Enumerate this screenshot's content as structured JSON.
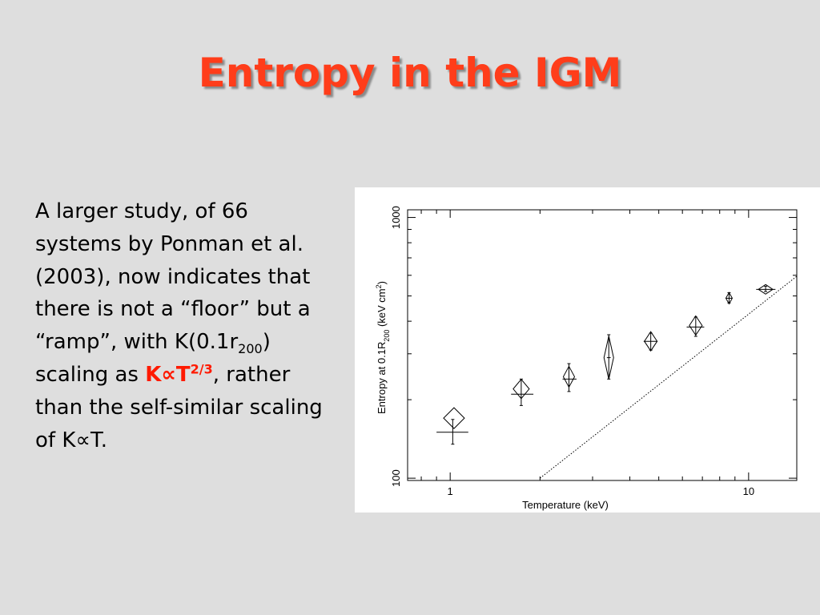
{
  "slide": {
    "title": "Entropy in the IGM",
    "body": {
      "text1": "A larger study, of 66 systems by  Ponman et al. (2003), now indicates that there is not a “floor” but a “ramp”, with K(0.1r",
      "sub200": "200",
      "text2": ") scaling as ",
      "hl_k": "K",
      "hl_prop": "∝",
      "hl_t": "T",
      "hl_exp": "2/3",
      "text3": ", rather than the self-similar scaling of K",
      "prop2": "∝",
      "text4": "T."
    }
  },
  "chart_data": {
    "type": "scatter",
    "xlabel": "Temperature  (keV)",
    "ylabel": {
      "main": "Entropy  at  0.1R",
      "sub": "200",
      "unit_open": "  (keV  cm",
      "sup": "2",
      "unit_close": ")"
    },
    "xscale": "log",
    "yscale": "log",
    "xlim": [
      0.72,
      14.5
    ],
    "ylim": [
      98,
      1070
    ],
    "x_tick_labels": [
      {
        "value": 1,
        "label": "1"
      },
      {
        "value": 10,
        "label": "10"
      }
    ],
    "y_tick_labels": [
      {
        "value": 100,
        "label": "100"
      },
      {
        "value": 1000,
        "label": "1000"
      }
    ],
    "series": [
      {
        "marker": "diamond",
        "points": [
          {
            "x": 1.03,
            "y": 170
          },
          {
            "x": 1.73,
            "y": 220
          },
          {
            "x": 2.5,
            "y": 245
          },
          {
            "x": 3.4,
            "y": 290
          },
          {
            "x": 4.7,
            "y": 335
          },
          {
            "x": 6.65,
            "y": 385
          },
          {
            "x": 8.6,
            "y": 490
          },
          {
            "x": 11.4,
            "y": 530
          }
        ]
      },
      {
        "marker": "cross-errorbar",
        "points": [
          {
            "x": 1.02,
            "y": 150,
            "xerr": [
              0.9,
              1.15
            ],
            "yerr": [
              135,
              168
            ]
          },
          {
            "x": 1.73,
            "y": 210,
            "xerr": [
              1.6,
              1.9
            ],
            "yerr": [
              190,
              240
            ]
          },
          {
            "x": 2.5,
            "y": 240,
            "xerr": [
              2.38,
              2.65
            ],
            "yerr": [
              215,
              275
            ]
          },
          {
            "x": 3.4,
            "y": 290,
            "xerr": [
              3.35,
              3.45
            ],
            "yerr": [
              240,
              355
            ]
          },
          {
            "x": 4.7,
            "y": 335,
            "xerr": [
              4.45,
              4.95
            ],
            "yerr": [
              310,
              360
            ]
          },
          {
            "x": 6.65,
            "y": 380,
            "xerr": [
              6.2,
              7.1
            ],
            "yerr": [
              350,
              415
            ]
          },
          {
            "x": 8.6,
            "y": 490,
            "xerr": [
              8.4,
              8.8
            ],
            "yerr": [
              470,
              515
            ]
          },
          {
            "x": 11.4,
            "y": 530,
            "xerr": [
              10.6,
              12.3
            ],
            "yerr": [
              520,
              545
            ]
          }
        ]
      }
    ],
    "reference_line": {
      "style": "dotted",
      "points": [
        [
          2.0,
          100
        ],
        [
          14.5,
          595
        ]
      ]
    }
  }
}
